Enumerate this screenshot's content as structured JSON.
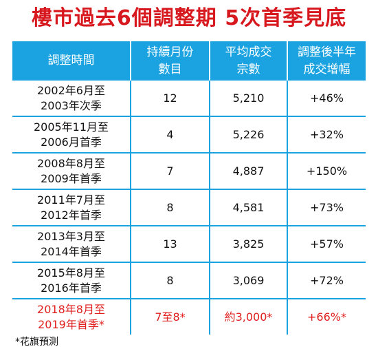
{
  "title": "樓市過去6個調整期  5次首季見底",
  "headers": [
    [
      "調整時間"
    ],
    [
      "持續月份",
      "數目"
    ],
    [
      "平均成交",
      "宗數"
    ],
    [
      "調整後半年",
      "成交增幅"
    ]
  ],
  "rows": [
    {
      "period": [
        "2002年6月至",
        "2003年次季"
      ],
      "months": "12",
      "avg": "5,210",
      "growth": "+46%"
    },
    {
      "period": [
        "2005年11月至",
        "2006月首季"
      ],
      "months": "4",
      "avg": "5,226",
      "growth": "+32%"
    },
    {
      "period": [
        "2008年8月至",
        "2009年首季"
      ],
      "months": "7",
      "avg": "4,887",
      "growth": "+150%"
    },
    {
      "period": [
        "2011年7月至",
        "2012年首季"
      ],
      "months": "8",
      "avg": "4,581",
      "growth": "+73%"
    },
    {
      "period": [
        "2013年3月至",
        "2014年首季"
      ],
      "months": "13",
      "avg": "3,825",
      "growth": "+57%"
    },
    {
      "period": [
        "2015年8月至",
        "2016年首季"
      ],
      "months": "8",
      "avg": "3,069",
      "growth": "+72%"
    },
    {
      "period": [
        "2018年8月至",
        "2019年首季*"
      ],
      "months": "7至8*",
      "avg": "約3,000*",
      "growth": "+66%*"
    }
  ],
  "footnote": "*花旗預測",
  "colors": {
    "title": "#d7191f",
    "header_bg": "#1aa3e0",
    "highlight": "#e0201f"
  }
}
